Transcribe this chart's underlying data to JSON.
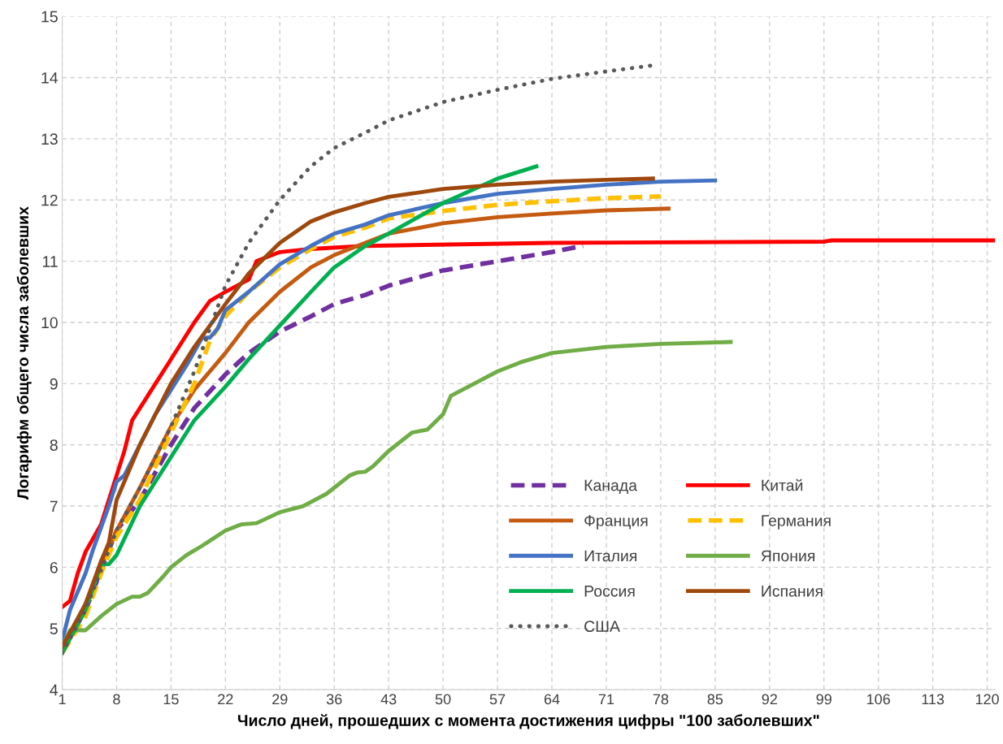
{
  "chart_data": {
    "type": "line",
    "xlabel": "Число дней, прошедших с момента достижения цифры \"100 заболевших\"",
    "ylabel": "Логарифм общего числа заболевших",
    "xlim": [
      1,
      121
    ],
    "xticks": [
      1,
      8,
      15,
      22,
      29,
      36,
      43,
      50,
      57,
      64,
      71,
      78,
      85,
      92,
      99,
      106,
      113,
      120
    ],
    "ylim": [
      4,
      15
    ],
    "yticks": [
      4,
      5,
      6,
      7,
      8,
      9,
      10,
      11,
      12,
      13,
      14,
      15
    ],
    "grid": true,
    "legend": "bottom right",
    "series": [
      {
        "name": "Канада",
        "color": "#7030a0",
        "line_style": "dashed",
        "x": [
          1,
          4,
          8,
          11,
          15,
          18,
          22,
          25,
          29,
          33,
          36,
          40,
          43,
          50,
          57,
          64,
          68
        ],
        "values": [
          4.7,
          5.3,
          6.6,
          7.1,
          8.0,
          8.6,
          9.15,
          9.5,
          9.85,
          10.1,
          10.3,
          10.45,
          10.6,
          10.85,
          11.0,
          11.15,
          11.25
        ]
      },
      {
        "name": "Китай",
        "color": "#ff0000",
        "line_style": "solid",
        "x": [
          1,
          2,
          3,
          4,
          6,
          8,
          9,
          10,
          12,
          15,
          18,
          20,
          22,
          25,
          26,
          29,
          33,
          40,
          64,
          99,
          100,
          121
        ],
        "values": [
          5.35,
          5.45,
          5.9,
          6.25,
          6.7,
          7.5,
          7.9,
          8.4,
          8.8,
          9.4,
          10.0,
          10.35,
          10.5,
          10.7,
          11.0,
          11.15,
          11.2,
          11.25,
          11.3,
          11.32,
          11.34,
          11.34
        ]
      },
      {
        "name": "Франция",
        "color": "#c55a11",
        "line_style": "solid",
        "x": [
          1,
          4,
          6,
          8,
          11,
          15,
          18,
          22,
          25,
          29,
          33,
          36,
          40,
          43,
          50,
          57,
          64,
          71,
          79
        ],
        "values": [
          4.6,
          5.4,
          6.0,
          6.6,
          7.3,
          8.3,
          8.9,
          9.5,
          10.0,
          10.5,
          10.9,
          11.1,
          11.3,
          11.45,
          11.62,
          11.72,
          11.78,
          11.83,
          11.86
        ]
      },
      {
        "name": "Германия",
        "color": "#ffc000",
        "line_style": "dashed",
        "x": [
          1,
          4,
          6,
          8,
          11,
          15,
          18,
          20,
          22,
          25,
          29,
          33,
          36,
          40,
          43,
          50,
          57,
          64,
          71,
          78
        ],
        "values": [
          4.6,
          5.2,
          5.9,
          6.5,
          7.1,
          8.2,
          9.0,
          9.7,
          10.1,
          10.5,
          10.9,
          11.2,
          11.4,
          11.55,
          11.7,
          11.82,
          11.92,
          11.98,
          12.03,
          12.06
        ]
      },
      {
        "name": "Италия",
        "color": "#4472c4",
        "line_style": "solid",
        "x": [
          1,
          2,
          4,
          5,
          7,
          8,
          9,
          11,
          13,
          15,
          17,
          19,
          20,
          21,
          22,
          25,
          29,
          33,
          36,
          40,
          43,
          50,
          57,
          64,
          71,
          78,
          85
        ],
        "values": [
          4.8,
          5.3,
          5.9,
          6.3,
          7.0,
          7.4,
          7.5,
          8.0,
          8.5,
          8.9,
          9.3,
          9.75,
          9.75,
          9.9,
          10.2,
          10.5,
          10.95,
          11.25,
          11.45,
          11.6,
          11.75,
          11.95,
          12.1,
          12.18,
          12.25,
          12.3,
          12.32
        ]
      },
      {
        "name": "Япония",
        "color": "#70ad47",
        "line_style": "solid",
        "x": [
          1,
          2,
          4,
          6,
          8,
          10,
          11,
          12,
          14,
          15,
          17,
          19,
          22,
          24,
          26,
          29,
          32,
          35,
          38,
          39,
          40,
          41,
          43,
          46,
          48,
          50,
          51,
          54,
          57,
          60,
          64,
          71,
          78,
          87
        ],
        "values": [
          4.7,
          4.97,
          4.97,
          5.2,
          5.4,
          5.52,
          5.52,
          5.58,
          5.85,
          6.0,
          6.2,
          6.35,
          6.6,
          6.7,
          6.72,
          6.9,
          7.0,
          7.2,
          7.5,
          7.55,
          7.56,
          7.65,
          7.9,
          8.2,
          8.25,
          8.5,
          8.8,
          9.0,
          9.2,
          9.35,
          9.5,
          9.6,
          9.65,
          9.68
        ]
      },
      {
        "name": "Россия",
        "color": "#00b050",
        "line_style": "solid",
        "x": [
          1,
          4,
          6,
          7,
          8,
          11,
          15,
          18,
          22,
          25,
          29,
          33,
          36,
          40,
          43,
          50,
          57,
          62
        ],
        "values": [
          4.6,
          5.3,
          6.05,
          6.05,
          6.2,
          7.0,
          7.8,
          8.4,
          8.95,
          9.4,
          9.95,
          10.5,
          10.9,
          11.25,
          11.45,
          11.95,
          12.35,
          12.55
        ]
      },
      {
        "name": "Испания",
        "color": "#9e480e",
        "line_style": "solid",
        "x": [
          1,
          4,
          6,
          7,
          8,
          11,
          15,
          18,
          22,
          25,
          29,
          33,
          36,
          40,
          43,
          50,
          57,
          64,
          71,
          77
        ],
        "values": [
          4.7,
          5.4,
          6.1,
          6.4,
          7.1,
          8.0,
          9.0,
          9.6,
          10.3,
          10.8,
          11.3,
          11.65,
          11.8,
          11.95,
          12.05,
          12.18,
          12.25,
          12.3,
          12.33,
          12.35
        ]
      },
      {
        "name": "США",
        "color": "#595959",
        "line_style": "dotted",
        "x": [
          1,
          4,
          8,
          11,
          15,
          18,
          20,
          22,
          25,
          29,
          33,
          36,
          40,
          43,
          50,
          57,
          64,
          71,
          77
        ],
        "values": [
          4.6,
          5.3,
          6.6,
          7.3,
          8.3,
          9.2,
          9.9,
          10.6,
          11.3,
          12.0,
          12.55,
          12.85,
          13.1,
          13.3,
          13.6,
          13.8,
          13.98,
          14.1,
          14.2
        ]
      }
    ]
  }
}
